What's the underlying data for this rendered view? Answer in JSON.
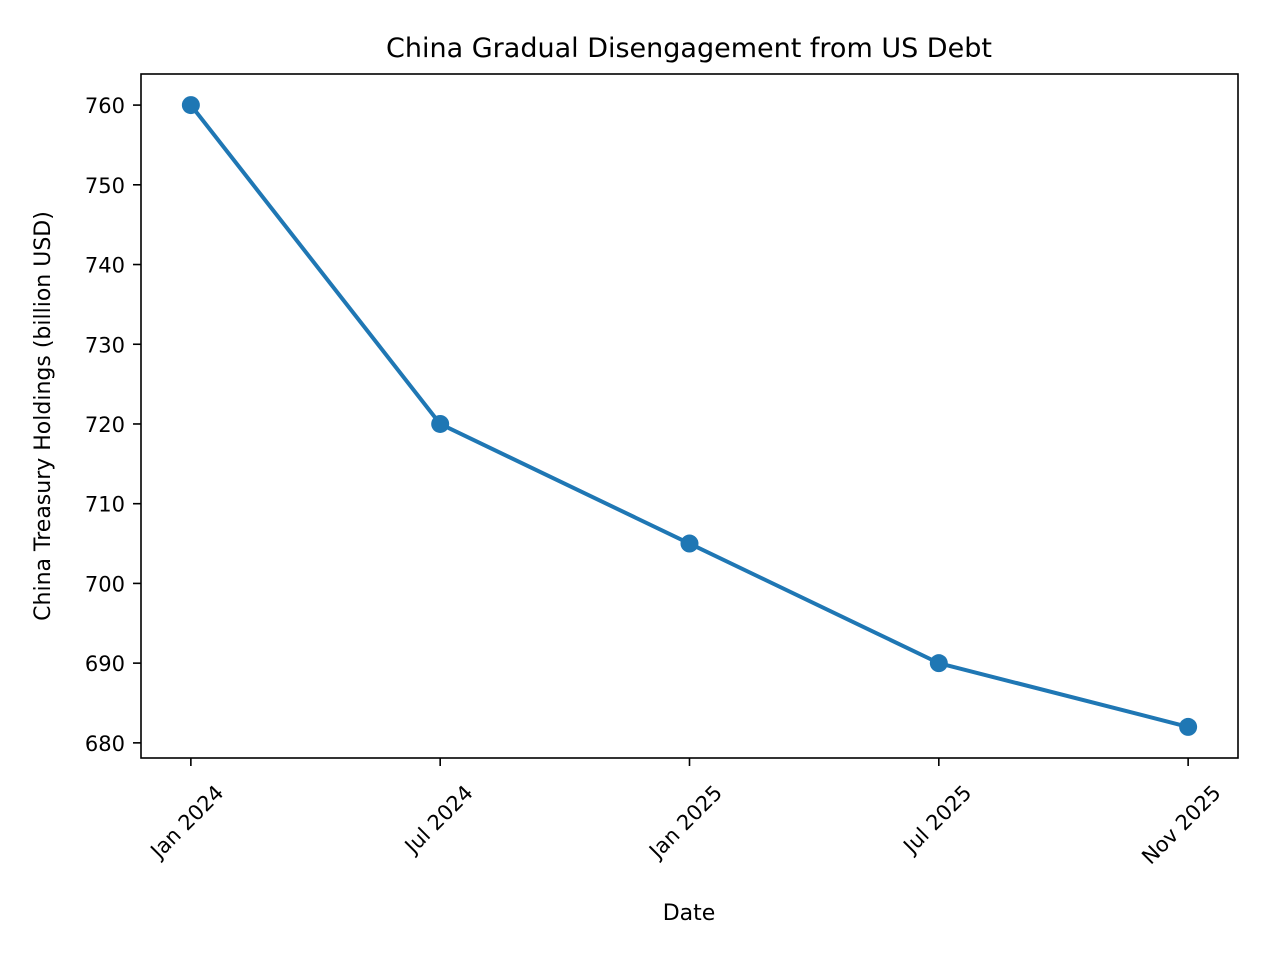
{
  "chart_data": {
    "type": "line",
    "title": "China Gradual Disengagement from US Debt",
    "xlabel": "Date",
    "ylabel": "China Treasury Holdings (billion USD)",
    "categories": [
      "Jan 2024",
      "Jul 2024",
      "Jan 2025",
      "Jul 2025",
      "Nov 2025"
    ],
    "series": [
      {
        "name": "China Treasury Holdings",
        "values": [
          760,
          720,
          705,
          690,
          682
        ]
      }
    ],
    "yticks": [
      680,
      690,
      700,
      710,
      720,
      730,
      740,
      750,
      760
    ],
    "ylim": [
      678.1,
      763.9
    ],
    "xlim": [
      -0.2,
      4.2
    ],
    "x_tick_rotation_deg": 45,
    "grid": false,
    "legend": "none",
    "line_color": "#1f77b4",
    "marker": "circle",
    "axis_color": "#000000",
    "background_color": "#ffffff"
  }
}
